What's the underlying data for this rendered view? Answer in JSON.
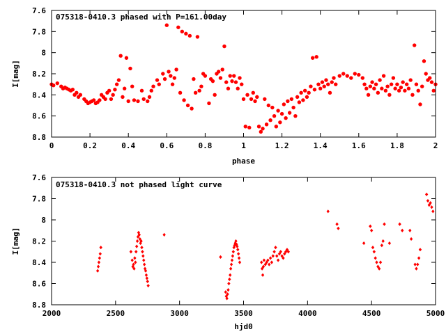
{
  "chart_data": [
    {
      "type": "scatter",
      "title": "075318-0410.3 phased with P=161.00day",
      "xlabel": "phase",
      "ylabel": "I[mag]",
      "xlim": [
        0,
        2
      ],
      "ylim": [
        8.8,
        7.6
      ],
      "xticks": [
        "0",
        "0.2",
        "0.4",
        "0.6",
        "0.8",
        "1",
        "1.2",
        "1.4",
        "1.6",
        "1.8",
        "2"
      ],
      "yticks": [
        "7.6",
        "7.8",
        "8",
        "8.2",
        "8.4",
        "8.6",
        "8.8"
      ],
      "grid": false,
      "marker": "filled-circle",
      "color": "#ff0000",
      "points": [
        [
          0.0,
          8.3
        ],
        [
          0.01,
          8.31
        ],
        [
          0.03,
          8.29
        ],
        [
          0.05,
          8.32
        ],
        [
          0.06,
          8.34
        ],
        [
          0.07,
          8.33
        ],
        [
          0.08,
          8.34
        ],
        [
          0.09,
          8.35
        ],
        [
          0.1,
          8.36
        ],
        [
          0.11,
          8.35
        ],
        [
          0.12,
          8.4
        ],
        [
          0.13,
          8.38
        ],
        [
          0.14,
          8.42
        ],
        [
          0.15,
          8.4
        ],
        [
          0.17,
          8.44
        ],
        [
          0.18,
          8.46
        ],
        [
          0.19,
          8.48
        ],
        [
          0.2,
          8.47
        ],
        [
          0.21,
          8.46
        ],
        [
          0.22,
          8.45
        ],
        [
          0.23,
          8.48
        ],
        [
          0.24,
          8.47
        ],
        [
          0.25,
          8.45
        ],
        [
          0.26,
          8.4
        ],
        [
          0.27,
          8.42
        ],
        [
          0.28,
          8.44
        ],
        [
          0.29,
          8.38
        ],
        [
          0.3,
          8.36
        ],
        [
          0.31,
          8.44
        ],
        [
          0.32,
          8.4
        ],
        [
          0.33,
          8.35
        ],
        [
          0.34,
          8.3
        ],
        [
          0.35,
          8.26
        ],
        [
          0.36,
          8.03
        ],
        [
          0.37,
          8.42
        ],
        [
          0.38,
          8.34
        ],
        [
          0.39,
          8.05
        ],
        [
          0.4,
          8.46
        ],
        [
          0.41,
          8.15
        ],
        [
          0.42,
          8.32
        ],
        [
          0.43,
          8.45
        ],
        [
          0.45,
          8.46
        ],
        [
          0.47,
          8.36
        ],
        [
          0.48,
          8.44
        ],
        [
          0.5,
          8.46
        ],
        [
          0.51,
          8.42
        ],
        [
          0.52,
          8.36
        ],
        [
          0.53,
          8.32
        ],
        [
          0.55,
          8.26
        ],
        [
          0.56,
          8.3
        ],
        [
          0.58,
          8.2
        ],
        [
          0.59,
          8.25
        ],
        [
          0.6,
          7.74
        ],
        [
          0.61,
          8.18
        ],
        [
          0.62,
          8.22
        ],
        [
          0.63,
          8.3
        ],
        [
          0.64,
          8.24
        ],
        [
          0.65,
          8.16
        ],
        [
          0.66,
          7.76
        ],
        [
          0.67,
          8.38
        ],
        [
          0.68,
          7.8
        ],
        [
          0.69,
          8.45
        ],
        [
          0.7,
          7.82
        ],
        [
          0.71,
          8.5
        ],
        [
          0.72,
          7.84
        ],
        [
          0.73,
          8.53
        ],
        [
          0.74,
          8.25
        ],
        [
          0.75,
          8.38
        ],
        [
          0.76,
          7.85
        ],
        [
          0.77,
          8.36
        ],
        [
          0.78,
          8.32
        ],
        [
          0.79,
          8.2
        ],
        [
          0.8,
          8.22
        ],
        [
          0.82,
          8.48
        ],
        [
          0.83,
          8.25
        ],
        [
          0.84,
          8.27
        ],
        [
          0.85,
          8.4
        ],
        [
          0.86,
          8.2
        ],
        [
          0.87,
          8.18
        ],
        [
          0.88,
          8.24
        ],
        [
          0.89,
          8.16
        ],
        [
          0.9,
          7.94
        ],
        [
          0.91,
          8.28
        ],
        [
          0.92,
          8.34
        ],
        [
          0.93,
          8.22
        ],
        [
          0.94,
          8.27
        ],
        [
          0.95,
          8.22
        ],
        [
          0.96,
          8.28
        ],
        [
          0.97,
          8.34
        ],
        [
          0.98,
          8.24
        ],
        [
          0.99,
          8.3
        ],
        [
          1.0,
          8.44
        ],
        [
          1.01,
          8.7
        ],
        [
          1.02,
          8.4
        ],
        [
          1.03,
          8.71
        ],
        [
          1.04,
          8.44
        ],
        [
          1.05,
          8.38
        ],
        [
          1.06,
          8.46
        ],
        [
          1.07,
          8.42
        ],
        [
          1.08,
          8.7
        ],
        [
          1.09,
          8.75
        ],
        [
          1.1,
          8.72
        ],
        [
          1.11,
          8.44
        ],
        [
          1.12,
          8.68
        ],
        [
          1.13,
          8.5
        ],
        [
          1.14,
          8.64
        ],
        [
          1.15,
          8.52
        ],
        [
          1.16,
          8.6
        ],
        [
          1.17,
          8.7
        ],
        [
          1.18,
          8.55
        ],
        [
          1.19,
          8.66
        ],
        [
          1.2,
          8.58
        ],
        [
          1.21,
          8.49
        ],
        [
          1.22,
          8.62
        ],
        [
          1.23,
          8.46
        ],
        [
          1.24,
          8.57
        ],
        [
          1.25,
          8.44
        ],
        [
          1.26,
          8.52
        ],
        [
          1.27,
          8.6
        ],
        [
          1.28,
          8.42
        ],
        [
          1.29,
          8.47
        ],
        [
          1.3,
          8.38
        ],
        [
          1.31,
          8.45
        ],
        [
          1.32,
          8.36
        ],
        [
          1.33,
          8.42
        ],
        [
          1.34,
          8.38
        ],
        [
          1.35,
          8.32
        ],
        [
          1.36,
          8.05
        ],
        [
          1.37,
          8.35
        ],
        [
          1.38,
          8.04
        ],
        [
          1.39,
          8.3
        ],
        [
          1.4,
          8.34
        ],
        [
          1.41,
          8.28
        ],
        [
          1.42,
          8.32
        ],
        [
          1.43,
          8.26
        ],
        [
          1.44,
          8.3
        ],
        [
          1.45,
          8.38
        ],
        [
          1.46,
          8.28
        ],
        [
          1.47,
          8.24
        ],
        [
          1.48,
          8.3
        ],
        [
          1.5,
          8.22
        ],
        [
          1.52,
          8.2
        ],
        [
          1.54,
          8.22
        ],
        [
          1.56,
          8.24
        ],
        [
          1.58,
          8.2
        ],
        [
          1.6,
          8.21
        ],
        [
          1.62,
          8.24
        ],
        [
          1.63,
          8.3
        ],
        [
          1.64,
          8.34
        ],
        [
          1.65,
          8.4
        ],
        [
          1.66,
          8.32
        ],
        [
          1.67,
          8.28
        ],
        [
          1.68,
          8.34
        ],
        [
          1.69,
          8.3
        ],
        [
          1.7,
          8.38
        ],
        [
          1.71,
          8.26
        ],
        [
          1.72,
          8.34
        ],
        [
          1.73,
          8.22
        ],
        [
          1.74,
          8.36
        ],
        [
          1.75,
          8.32
        ],
        [
          1.76,
          8.4
        ],
        [
          1.77,
          8.3
        ],
        [
          1.78,
          8.24
        ],
        [
          1.79,
          8.34
        ],
        [
          1.8,
          8.3
        ],
        [
          1.81,
          8.36
        ],
        [
          1.82,
          8.33
        ],
        [
          1.83,
          8.28
        ],
        [
          1.84,
          8.36
        ],
        [
          1.85,
          8.3
        ],
        [
          1.86,
          8.34
        ],
        [
          1.87,
          8.26
        ],
        [
          1.88,
          8.4
        ],
        [
          1.89,
          7.93
        ],
        [
          1.9,
          8.3
        ],
        [
          1.91,
          8.36
        ],
        [
          1.92,
          8.49
        ],
        [
          1.93,
          8.32
        ],
        [
          1.94,
          8.08
        ],
        [
          1.95,
          8.2
        ],
        [
          1.96,
          8.26
        ],
        [
          1.97,
          8.24
        ],
        [
          1.98,
          8.28
        ],
        [
          1.99,
          8.36
        ],
        [
          2.0,
          8.3
        ]
      ]
    },
    {
      "type": "scatter",
      "title": "075318-0410.3 not phased light curve",
      "xlabel": "hjd0",
      "ylabel": "I[mag]",
      "xlim": [
        2000,
        5000
      ],
      "ylim": [
        8.8,
        7.6
      ],
      "xticks": [
        "2000",
        "2500",
        "3000",
        "3500",
        "4000",
        "4500",
        "5000"
      ],
      "yticks": [
        "7.6",
        "7.8",
        "8",
        "8.2",
        "8.4",
        "8.6",
        "8.8"
      ],
      "grid": false,
      "marker": "small-diamond",
      "color": "#ff0000",
      "points": [
        [
          2360,
          8.48
        ],
        [
          2365,
          8.44
        ],
        [
          2370,
          8.4
        ],
        [
          2375,
          8.36
        ],
        [
          2380,
          8.32
        ],
        [
          2385,
          8.26
        ],
        [
          2620,
          8.3
        ],
        [
          2630,
          8.38
        ],
        [
          2635,
          8.44
        ],
        [
          2640,
          8.42
        ],
        [
          2645,
          8.46
        ],
        [
          2650,
          8.36
        ],
        [
          2655,
          8.4
        ],
        [
          2660,
          8.3
        ],
        [
          2665,
          8.25
        ],
        [
          2670,
          8.2
        ],
        [
          2675,
          8.16
        ],
        [
          2680,
          8.12
        ],
        [
          2685,
          8.14
        ],
        [
          2690,
          8.18
        ],
        [
          2695,
          8.22
        ],
        [
          2700,
          8.2
        ],
        [
          2705,
          8.26
        ],
        [
          2710,
          8.3
        ],
        [
          2715,
          8.34
        ],
        [
          2720,
          8.38
        ],
        [
          2725,
          8.42
        ],
        [
          2730,
          8.46
        ],
        [
          2735,
          8.48
        ],
        [
          2740,
          8.52
        ],
        [
          2745,
          8.55
        ],
        [
          2750,
          8.58
        ],
        [
          2755,
          8.62
        ],
        [
          2880,
          8.14
        ],
        [
          3320,
          8.35
        ],
        [
          3360,
          8.68
        ],
        [
          3365,
          8.72
        ],
        [
          3370,
          8.74
        ],
        [
          3375,
          8.7
        ],
        [
          3380,
          8.66
        ],
        [
          3385,
          8.6
        ],
        [
          3390,
          8.56
        ],
        [
          3395,
          8.52
        ],
        [
          3400,
          8.46
        ],
        [
          3405,
          8.42
        ],
        [
          3410,
          8.38
        ],
        [
          3415,
          8.34
        ],
        [
          3420,
          8.3
        ],
        [
          3425,
          8.26
        ],
        [
          3430,
          8.24
        ],
        [
          3435,
          8.22
        ],
        [
          3440,
          8.2
        ],
        [
          3445,
          8.23
        ],
        [
          3450,
          8.25
        ],
        [
          3455,
          8.28
        ],
        [
          3460,
          8.32
        ],
        [
          3465,
          8.36
        ],
        [
          3470,
          8.4
        ],
        [
          3640,
          8.4
        ],
        [
          3645,
          8.46
        ],
        [
          3650,
          8.52
        ],
        [
          3655,
          8.44
        ],
        [
          3660,
          8.38
        ],
        [
          3670,
          8.42
        ],
        [
          3680,
          8.4
        ],
        [
          3690,
          8.38
        ],
        [
          3700,
          8.42
        ],
        [
          3710,
          8.36
        ],
        [
          3720,
          8.4
        ],
        [
          3730,
          8.34
        ],
        [
          3740,
          8.3
        ],
        [
          3750,
          8.26
        ],
        [
          3760,
          8.34
        ],
        [
          3770,
          8.38
        ],
        [
          3780,
          8.32
        ],
        [
          3790,
          8.3
        ],
        [
          3800,
          8.34
        ],
        [
          3810,
          8.36
        ],
        [
          3820,
          8.32
        ],
        [
          3830,
          8.3
        ],
        [
          3840,
          8.28
        ],
        [
          3850,
          8.3
        ],
        [
          4160,
          7.92
        ],
        [
          4230,
          8.04
        ],
        [
          4240,
          8.08
        ],
        [
          4440,
          8.22
        ],
        [
          4490,
          8.06
        ],
        [
          4500,
          8.1
        ],
        [
          4510,
          8.26
        ],
        [
          4520,
          8.3
        ],
        [
          4530,
          8.36
        ],
        [
          4540,
          8.4
        ],
        [
          4550,
          8.44
        ],
        [
          4560,
          8.46
        ],
        [
          4570,
          8.4
        ],
        [
          4580,
          8.24
        ],
        [
          4590,
          8.2
        ],
        [
          4600,
          8.04
        ],
        [
          4640,
          8.22
        ],
        [
          4720,
          8.04
        ],
        [
          4740,
          8.1
        ],
        [
          4800,
          8.1
        ],
        [
          4810,
          8.18
        ],
        [
          4840,
          8.42
        ],
        [
          4850,
          8.46
        ],
        [
          4860,
          8.42
        ],
        [
          4870,
          8.36
        ],
        [
          4880,
          8.28
        ],
        [
          4930,
          7.76
        ],
        [
          4940,
          7.82
        ],
        [
          4950,
          7.86
        ],
        [
          4960,
          7.84
        ],
        [
          4970,
          7.88
        ],
        [
          4980,
          7.92
        ]
      ]
    }
  ]
}
